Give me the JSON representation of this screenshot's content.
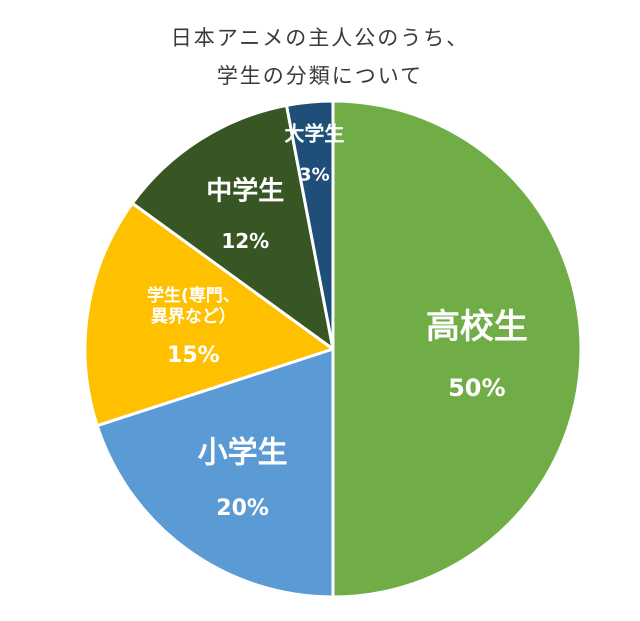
{
  "chart_data": {
    "type": "pie",
    "title": [
      "日本アニメの主人公のうち、",
      "学生の分類について"
    ],
    "slices": [
      {
        "name": "高校生",
        "name_lines": [
          "高校生"
        ],
        "value": 50,
        "label": "50%",
        "color": "#70ad47",
        "text_color": "#ffffff"
      },
      {
        "name": "小学生",
        "name_lines": [
          "小学生"
        ],
        "value": 20,
        "label": "20%",
        "color": "#5b9bd5",
        "text_color": "#ffffff"
      },
      {
        "name": "学生(専門、異界など）",
        "name_lines": [
          "学生(専門、",
          "異界など）"
        ],
        "value": 15,
        "label": "15%",
        "color": "#ffc000",
        "text_color": "#ffffff"
      },
      {
        "name": "中学生",
        "name_lines": [
          "中学生"
        ],
        "value": 12,
        "label": "12%",
        "color": "#375623",
        "text_color": "#ffffff"
      },
      {
        "name": "大学生",
        "name_lines": [
          "大学生"
        ],
        "value": 3,
        "label": "3%",
        "color": "#1f4e79",
        "text_color": "#ffffff"
      }
    ],
    "start_angle": "top, clockwise",
    "legend": "none"
  }
}
